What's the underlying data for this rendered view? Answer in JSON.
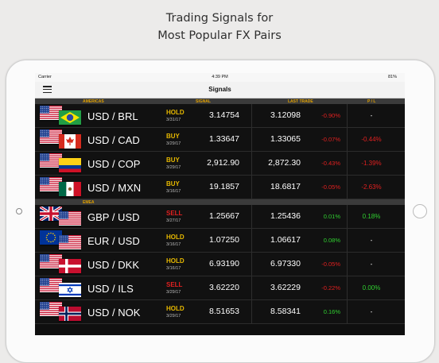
{
  "headline": {
    "line1": "Trading Signals for",
    "line2": "Most Popular FX Pairs"
  },
  "status": {
    "carrier": "Carrier",
    "time": "4:39 PM",
    "battery": "81%"
  },
  "nav": {
    "title": "Signals",
    "menu_icon": "hamburger-menu-icon"
  },
  "columns": {
    "signal": "SIGNAL",
    "last_trade": "LAST TRADE",
    "pl": "P / L"
  },
  "sections": [
    {
      "name": "AMERICAS",
      "rows": [
        {
          "pair": "USD / BRL",
          "flag1": "us-flag-icon",
          "flag2": "br-flag-icon",
          "action": "HOLD",
          "date": "3/31/17",
          "signal": "3.14754",
          "last": "3.12098",
          "change": "-0.90%",
          "pl": "-"
        },
        {
          "pair": "USD / CAD",
          "flag1": "us-flag-icon",
          "flag2": "ca-flag-icon",
          "action": "BUY",
          "date": "3/29/17",
          "signal": "1.33647",
          "last": "1.33065",
          "change": "-0.07%",
          "pl": "-0.44%"
        },
        {
          "pair": "USD / COP",
          "flag1": "us-flag-icon",
          "flag2": "co-flag-icon",
          "action": "BUY",
          "date": "3/29/17",
          "signal": "2,912.90",
          "last": "2,872.30",
          "change": "-0.43%",
          "pl": "-1.39%"
        },
        {
          "pair": "USD / MXN",
          "flag1": "us-flag-icon",
          "flag2": "mx-flag-icon",
          "action": "BUY",
          "date": "3/16/17",
          "signal": "19.1857",
          "last": "18.6817",
          "change": "-0.05%",
          "pl": "-2.63%"
        }
      ]
    },
    {
      "name": "EMEA",
      "rows": [
        {
          "pair": "GBP / USD",
          "flag1": "gb-flag-icon",
          "flag2": "us-flag-icon",
          "action": "SELL",
          "date": "3/27/17",
          "signal": "1.25667",
          "last": "1.25436",
          "change": "0.01%",
          "pl": "0.18%"
        },
        {
          "pair": "EUR / USD",
          "flag1": "eu-flag-icon",
          "flag2": "us-flag-icon",
          "action": "HOLD",
          "date": "3/16/17",
          "signal": "1.07250",
          "last": "1.06617",
          "change": "0.08%",
          "pl": "-"
        },
        {
          "pair": "USD / DKK",
          "flag1": "us-flag-icon",
          "flag2": "dk-flag-icon",
          "action": "HOLD",
          "date": "3/16/17",
          "signal": "6.93190",
          "last": "6.97330",
          "change": "-0.05%",
          "pl": "-"
        },
        {
          "pair": "USD / ILS",
          "flag1": "us-flag-icon",
          "flag2": "il-flag-icon",
          "action": "SELL",
          "date": "3/29/17",
          "signal": "3.62220",
          "last": "3.62229",
          "change": "-0.22%",
          "pl": "0.00%"
        },
        {
          "pair": "USD / NOK",
          "flag1": "us-flag-icon",
          "flag2": "no-flag-icon",
          "action": "HOLD",
          "date": "3/29/17",
          "signal": "8.51653",
          "last": "8.58341",
          "change": "0.16%",
          "pl": "-"
        }
      ]
    }
  ],
  "colors": {
    "sell": "#e02020",
    "buy": "#e6b800",
    "hold": "#e6b800",
    "positive": "#30d030",
    "negative": "#e02020",
    "section_text": "#e0a000"
  }
}
